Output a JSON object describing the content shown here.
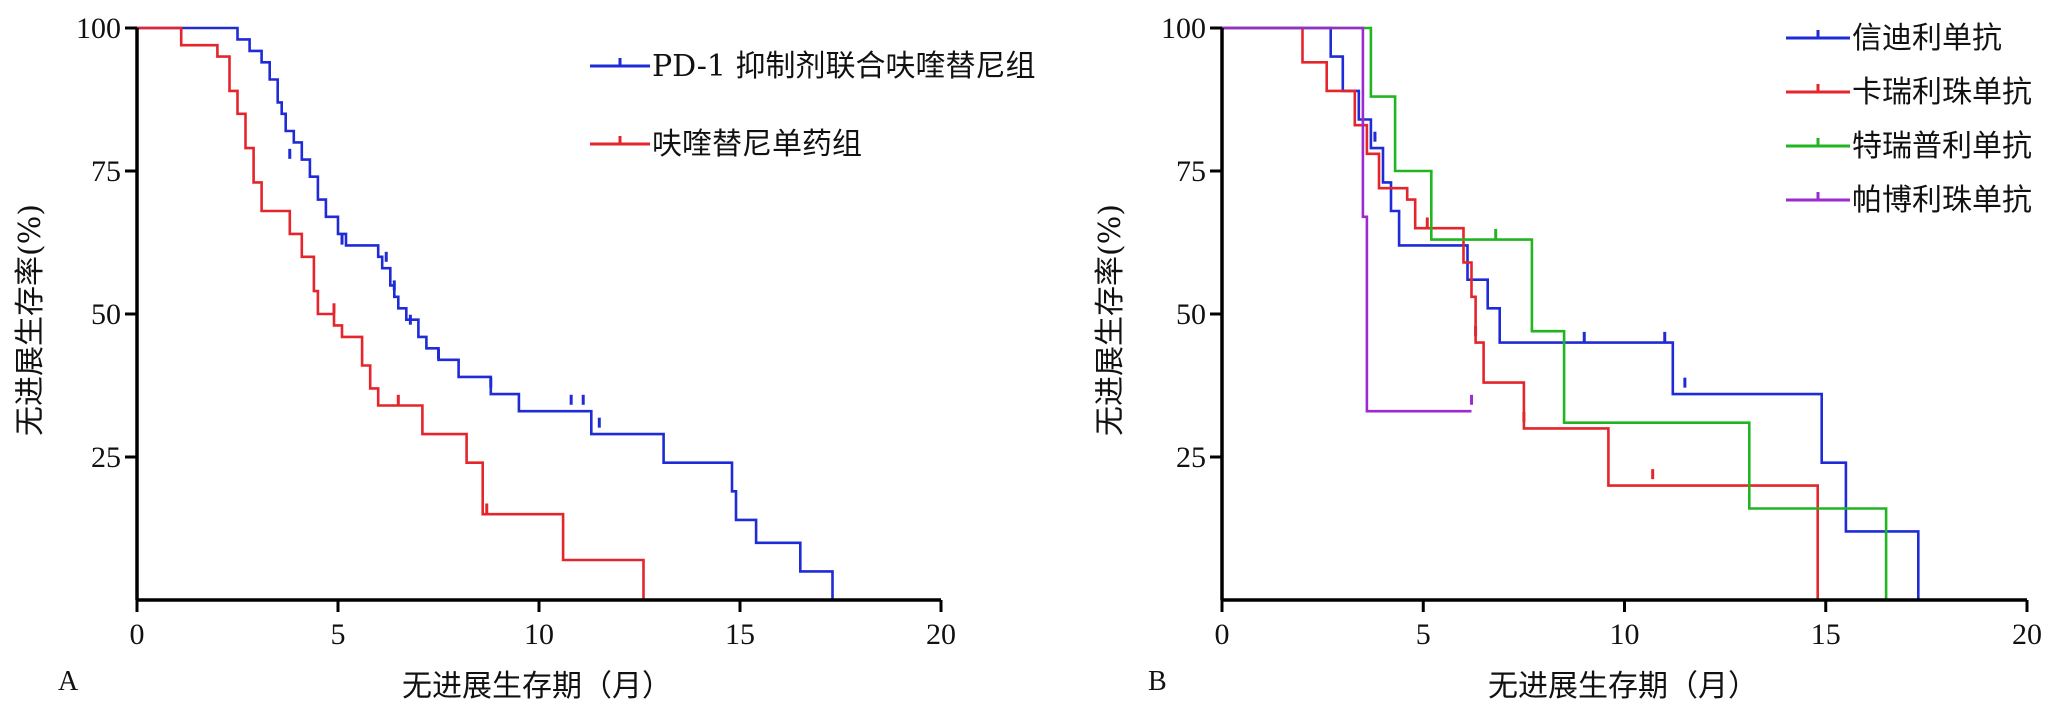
{
  "colors": {
    "blue": "#1f2bd6",
    "red": "#e4252b",
    "green": "#22b522",
    "purple": "#9b2bd0"
  },
  "chart_data": [
    {
      "panel_label": "A",
      "type": "line",
      "xlabel": "无进展生存期（月）",
      "ylabel": "无进展生存率(%)",
      "xlim": [
        0,
        20
      ],
      "ylim": [
        0,
        100
      ],
      "x_ticks": [
        "0",
        "5",
        "10",
        "15",
        "20"
      ],
      "y_ticks": [
        "25",
        "50",
        "75",
        "100"
      ],
      "legend_position": "top-right",
      "series": [
        {
          "name": "PD-1 抑制剂联合呋喹替尼组",
          "color": "#1f2bd6",
          "steps": [
            [
              0,
              100
            ],
            [
              2,
              100
            ],
            [
              2.5,
              98
            ],
            [
              2.8,
              96
            ],
            [
              3.1,
              94
            ],
            [
              3.3,
              91
            ],
            [
              3.5,
              87
            ],
            [
              3.6,
              85
            ],
            [
              3.7,
              82
            ],
            [
              3.9,
              80
            ],
            [
              4.1,
              77
            ],
            [
              4.3,
              74
            ],
            [
              4.5,
              70
            ],
            [
              4.7,
              67
            ],
            [
              5.0,
              64
            ],
            [
              5.2,
              62
            ],
            [
              6.0,
              60
            ],
            [
              6.1,
              58
            ],
            [
              6.3,
              55
            ],
            [
              6.4,
              53
            ],
            [
              6.5,
              51
            ],
            [
              6.7,
              49
            ],
            [
              7.0,
              46
            ],
            [
              7.2,
              44
            ],
            [
              7.5,
              42
            ],
            [
              8.0,
              39
            ],
            [
              8.8,
              36
            ],
            [
              9.5,
              33
            ],
            [
              11.3,
              29
            ],
            [
              13.1,
              24
            ],
            [
              14.8,
              19
            ],
            [
              14.9,
              14
            ],
            [
              15.4,
              10
            ],
            [
              16.5,
              5
            ],
            [
              17.3,
              0
            ]
          ],
          "censors": [
            [
              3.8,
              78
            ],
            [
              5.1,
              63
            ],
            [
              6.2,
              60
            ],
            [
              6.4,
              55
            ],
            [
              6.8,
              49
            ],
            [
              7.5,
              43
            ],
            [
              8.8,
              38
            ],
            [
              10.8,
              35
            ],
            [
              11.1,
              35
            ],
            [
              11.5,
              31
            ]
          ]
        },
        {
          "name": "呋喹替尼单药组",
          "color": "#e4252b",
          "steps": [
            [
              0,
              100
            ],
            [
              1.1,
              97
            ],
            [
              2.0,
              95
            ],
            [
              2.3,
              89
            ],
            [
              2.5,
              85
            ],
            [
              2.7,
              79
            ],
            [
              2.9,
              73
            ],
            [
              3.1,
              68
            ],
            [
              3.8,
              64
            ],
            [
              4.1,
              60
            ],
            [
              4.4,
              54
            ],
            [
              4.5,
              50
            ],
            [
              4.9,
              48
            ],
            [
              5.1,
              46
            ],
            [
              5.6,
              41
            ],
            [
              5.8,
              37
            ],
            [
              6.0,
              34
            ],
            [
              7.1,
              29
            ],
            [
              8.2,
              24
            ],
            [
              8.6,
              15
            ],
            [
              10.6,
              7
            ],
            [
              12.6,
              0
            ]
          ],
          "censors": [
            [
              4.9,
              51
            ],
            [
              6.5,
              35
            ],
            [
              8.7,
              16
            ]
          ]
        }
      ]
    },
    {
      "panel_label": "B",
      "type": "line",
      "xlabel": "无进展生存期（月）",
      "ylabel": "无进展生存率(%)",
      "xlim": [
        0,
        20
      ],
      "ylim": [
        0,
        100
      ],
      "x_ticks": [
        "0",
        "5",
        "10",
        "15",
        "20"
      ],
      "y_ticks": [
        "25",
        "50",
        "75",
        "100"
      ],
      "legend_position": "top-right",
      "series": [
        {
          "name": "信迪利单抗",
          "color": "#1f2bd6",
          "steps": [
            [
              0,
              100
            ],
            [
              2.5,
              100
            ],
            [
              2.7,
              95
            ],
            [
              3.0,
              89
            ],
            [
              3.4,
              84
            ],
            [
              3.7,
              79
            ],
            [
              4.0,
              73
            ],
            [
              4.2,
              68
            ],
            [
              4.4,
              62
            ],
            [
              6.1,
              56
            ],
            [
              6.6,
              51
            ],
            [
              6.9,
              45
            ],
            [
              11.2,
              36
            ],
            [
              14.9,
              24
            ],
            [
              15.5,
              12
            ],
            [
              17.3,
              0
            ]
          ],
          "censors": [
            [
              3.8,
              81
            ],
            [
              9.0,
              46
            ],
            [
              11.0,
              46
            ],
            [
              11.5,
              38
            ]
          ]
        },
        {
          "name": "卡瑞利珠单抗",
          "color": "#e4252b",
          "steps": [
            [
              0,
              100
            ],
            [
              2.0,
              94
            ],
            [
              2.6,
              89
            ],
            [
              3.3,
              83
            ],
            [
              3.6,
              78
            ],
            [
              3.9,
              72
            ],
            [
              4.6,
              70
            ],
            [
              4.8,
              65
            ],
            [
              6.0,
              59
            ],
            [
              6.2,
              53
            ],
            [
              6.3,
              45
            ],
            [
              6.5,
              38
            ],
            [
              7.5,
              30
            ],
            [
              9.6,
              20
            ],
            [
              14.8,
              0
            ]
          ],
          "censors": [
            [
              5.1,
              66
            ],
            [
              6.3,
              47
            ],
            [
              7.5,
              32
            ],
            [
              10.7,
              22
            ]
          ]
        },
        {
          "name": "特瑞普利单抗",
          "color": "#22b522",
          "steps": [
            [
              0,
              100
            ],
            [
              3.6,
              100
            ],
            [
              3.7,
              88
            ],
            [
              4.3,
              75
            ],
            [
              5.2,
              63
            ],
            [
              7.7,
              47
            ],
            [
              8.5,
              31
            ],
            [
              13.1,
              16
            ],
            [
              16.5,
              0
            ]
          ],
          "censors": [
            [
              6.8,
              64
            ]
          ]
        },
        {
          "name": "帕博利珠单抗",
          "color": "#9b2bd0",
          "steps": [
            [
              0,
              100
            ],
            [
              3.4,
              100
            ],
            [
              3.5,
              67
            ],
            [
              3.6,
              33
            ],
            [
              6.2,
              33
            ]
          ],
          "censors": [
            [
              6.2,
              35
            ]
          ]
        }
      ]
    }
  ]
}
